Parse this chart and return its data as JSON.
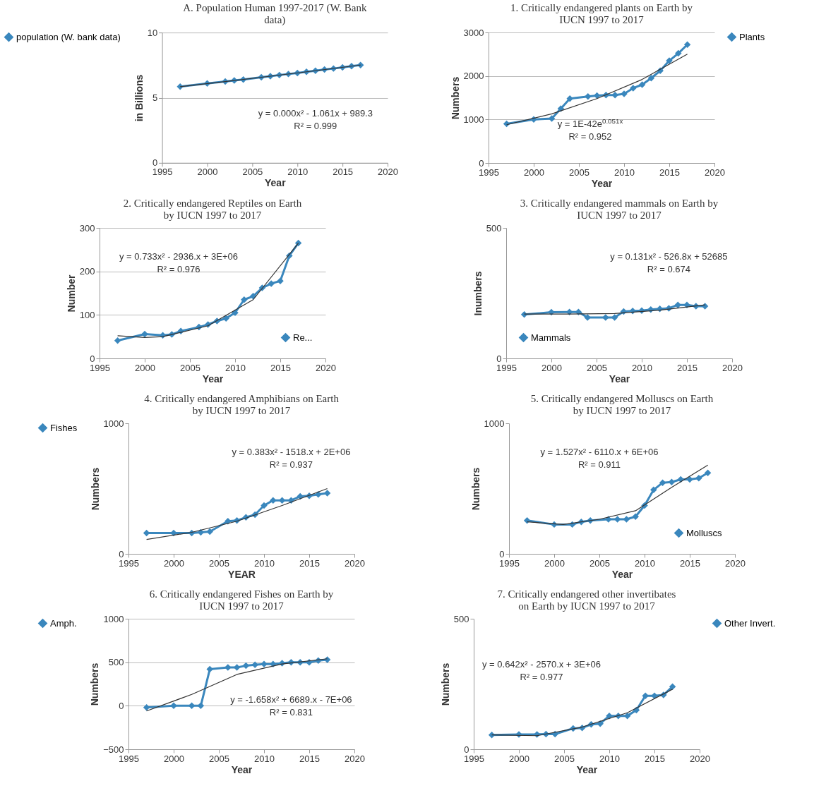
{
  "chart_data": [
    {
      "type": "line",
      "title": "A. Population Human 1997-2017  (W. Bank data)",
      "xlabel": "Year",
      "ylabel": "in Billions",
      "x": [
        1997,
        2000,
        2002,
        2003,
        2004,
        2006,
        2007,
        2008,
        2009,
        2010,
        2011,
        2012,
        2013,
        2014,
        2015,
        2016,
        2017
      ],
      "xlim": [
        1995,
        2020
      ],
      "xticks": [
        1995,
        2000,
        2005,
        2010,
        2015,
        2020
      ],
      "ylim": [
        0,
        10
      ],
      "yticks": [
        0,
        5,
        10
      ],
      "grid": "y",
      "marker": "diamond",
      "legend": "left",
      "annotations": [
        "y = 0.000x² - 1.061x + 989.3",
        "R² = 0.999"
      ],
      "series": [
        {
          "name": "population (W. bank data)",
          "color": "#3a87bd",
          "values": [
            5.85,
            6.1,
            6.25,
            6.33,
            6.4,
            6.57,
            6.65,
            6.74,
            6.82,
            6.9,
            6.99,
            7.07,
            7.16,
            7.24,
            7.33,
            7.42,
            7.51
          ]
        },
        {
          "type": "line",
          "marker": "none",
          "color": "#333333",
          "x": [
            1997,
            2002,
            2007,
            2012,
            2017
          ],
          "values": [
            5.85,
            6.24,
            6.65,
            7.07,
            7.51
          ]
        }
      ]
    },
    {
      "type": "line",
      "title": "1. Critically endangered plants on Earth by IUCN 1997 to 2017",
      "xlabel": "Year",
      "ylabel": "Numbers",
      "x": [
        1997,
        2000,
        2002,
        2003,
        2004,
        2006,
        2007,
        2008,
        2009,
        2010,
        2011,
        2012,
        2013,
        2014,
        2015,
        2016,
        2017
      ],
      "xlim": [
        1995,
        2020
      ],
      "xticks": [
        1995,
        2000,
        2005,
        2010,
        2015,
        2020
      ],
      "ylim": [
        0,
        3000
      ],
      "yticks": [
        0,
        1000,
        2000,
        3000
      ],
      "grid": "y",
      "marker": "diamond",
      "legend": "right",
      "annotations": [
        "y = 1E-42e$^{0.051x}$",
        "R² = 0.952"
      ],
      "series": [
        {
          "name": "Plants",
          "color": "#3a87bd",
          "values": [
            900,
            1000,
            1020,
            1250,
            1480,
            1530,
            1550,
            1560,
            1560,
            1590,
            1720,
            1800,
            1950,
            2120,
            2350,
            2520,
            2720
          ]
        },
        {
          "type": "line",
          "marker": "none",
          "color": "#333333",
          "x": [
            1997,
            2002,
            2007,
            2012,
            2017
          ],
          "values": [
            880,
            1130,
            1480,
            1920,
            2500
          ]
        }
      ]
    },
    {
      "type": "line",
      "title": "2. Critically endangered Reptiles on Earth by IUCN 1997 to 2017",
      "xlabel": "Year",
      "ylabel": "Number",
      "x": [
        1997,
        2000,
        2002,
        2003,
        2004,
        2006,
        2007,
        2008,
        2009,
        2010,
        2011,
        2012,
        2013,
        2014,
        2015,
        2016,
        2017
      ],
      "xlim": [
        1995,
        2020
      ],
      "xticks": [
        1995,
        2000,
        2005,
        2010,
        2015,
        2020
      ],
      "ylim": [
        0,
        300
      ],
      "yticks": [
        0,
        100,
        200,
        300
      ],
      "grid": "y",
      "marker": "diamond",
      "legend": "bottom right",
      "annotations": [
        "y = 0.733x² - 2936.x + 3E+06",
        "R² = 0.976"
      ],
      "series": [
        {
          "name": "Re...",
          "color": "#3a87bd",
          "values": [
            41,
            56,
            53,
            55,
            63,
            72,
            78,
            86,
            92,
            105,
            135,
            143,
            162,
            172,
            178,
            236,
            265
          ]
        },
        {
          "type": "line",
          "marker": "none",
          "color": "#333333",
          "x": [
            1997,
            2000,
            2002,
            2007,
            2012,
            2017
          ],
          "values": [
            52,
            48,
            50,
            75,
            135,
            265
          ]
        }
      ]
    },
    {
      "type": "line",
      "title": "3. Critically endangered mammals on Earth by IUCN 1997 to 2017",
      "xlabel": "Year",
      "ylabel": "Inumbers",
      "x": [
        1997,
        2000,
        2002,
        2003,
        2004,
        2006,
        2007,
        2008,
        2009,
        2010,
        2011,
        2012,
        2013,
        2014,
        2015,
        2016,
        2017
      ],
      "xlim": [
        1995,
        2020
      ],
      "xticks": [
        1995,
        2000,
        2005,
        2010,
        2015,
        2020
      ],
      "ylim": [
        0,
        500
      ],
      "yticks": [
        0,
        500
      ],
      "grid": false,
      "marker": "diamond",
      "legend": "bottom left",
      "annotations": [
        "y = 0.131x² - 526.8x + 52685",
        "R² = 0.674"
      ],
      "series": [
        {
          "name": "Mammals",
          "color": "#3a87bd",
          "values": [
            168,
            177,
            178,
            178,
            157,
            157,
            157,
            180,
            182,
            183,
            187,
            190,
            192,
            205,
            205,
            200,
            200
          ]
        },
        {
          "type": "line",
          "marker": "none",
          "color": "#333333",
          "x": [
            1997,
            2002,
            2007,
            2012,
            2017
          ],
          "values": [
            170,
            170,
            172,
            185,
            205
          ]
        }
      ]
    },
    {
      "type": "line",
      "title": "4. Critically endangered Amphibians on Earth by IUCN 1997 to 2017",
      "xlabel": "YEAR",
      "ylabel": "Numbers",
      "x": [
        1997,
        2000,
        2002,
        2003,
        2004,
        2006,
        2007,
        2008,
        2009,
        2010,
        2011,
        2012,
        2013,
        2014,
        2015,
        2016,
        2017
      ],
      "xlim": [
        1995,
        2020
      ],
      "xticks": [
        1995,
        2000,
        2005,
        2010,
        2015,
        2020
      ],
      "ylim": [
        0,
        1000
      ],
      "yticks": [
        0,
        1000
      ],
      "grid": false,
      "marker": "diamond",
      "legend": "left",
      "annotations": [
        "y = 0.383x² - 1518.x + 2E+06",
        "R² = 0.937"
      ],
      "series": [
        {
          "name": "Fishes",
          "color": "#3a87bd",
          "values": [
            160,
            160,
            160,
            165,
            170,
            250,
            255,
            280,
            300,
            370,
            410,
            410,
            410,
            440,
            445,
            455,
            465
          ]
        },
        {
          "type": "line",
          "marker": "none",
          "color": "#333333",
          "x": [
            1997,
            2002,
            2007,
            2012,
            2017
          ],
          "values": [
            110,
            165,
            250,
            370,
            500
          ]
        }
      ]
    },
    {
      "type": "line",
      "title": "5. Critically endangered Molluscs on Earth by IUCN 1997 to 2017",
      "xlabel": "Year",
      "ylabel": "Numbers",
      "x": [
        1997,
        2000,
        2002,
        2003,
        2004,
        2006,
        2007,
        2008,
        2009,
        2010,
        2011,
        2012,
        2013,
        2014,
        2015,
        2016,
        2017
      ],
      "xlim": [
        1995,
        2020
      ],
      "xticks": [
        1995,
        2000,
        2005,
        2010,
        2015,
        2020
      ],
      "ylim": [
        0,
        1000
      ],
      "yticks": [
        0,
        1000
      ],
      "grid": false,
      "marker": "diamond",
      "legend": "bottom right",
      "annotations": [
        "y = 1.527x² - 6110.x + 6E+06",
        "R² = 0.911"
      ],
      "series": [
        {
          "name": "Molluscs",
          "color": "#3a87bd",
          "values": [
            255,
            225,
            225,
            245,
            255,
            265,
            265,
            265,
            285,
            370,
            490,
            545,
            550,
            570,
            570,
            580,
            620
          ]
        },
        {
          "type": "line",
          "marker": "none",
          "color": "#333333",
          "x": [
            1997,
            2001,
            2005,
            2009,
            2013,
            2017
          ],
          "values": [
            245,
            225,
            265,
            330,
            510,
            680
          ]
        }
      ]
    },
    {
      "type": "line",
      "title": "6. Critically endangered  Fishes on Earth by IUCN 1997 to 2017",
      "xlabel": "Year",
      "ylabel": "Numbers",
      "x": [
        1997,
        2000,
        2002,
        2003,
        2004,
        2006,
        2007,
        2008,
        2009,
        2010,
        2011,
        2012,
        2013,
        2014,
        2015,
        2016,
        2017
      ],
      "xlim": [
        1995,
        2020
      ],
      "xticks": [
        1995,
        2000,
        2005,
        2010,
        2015,
        2020
      ],
      "ylim": [
        -500,
        1000
      ],
      "yticks": [
        -500,
        0,
        500,
        1000
      ],
      "grid": "y",
      "marker": "diamond",
      "legend": "left",
      "annotations": [
        "y = -1.658x² + 6689.x - 7E+06",
        "R² = 0.831"
      ],
      "series": [
        {
          "name": "Amph.",
          "color": "#3a87bd",
          "values": [
            -20,
            0,
            0,
            0,
            420,
            440,
            440,
            460,
            470,
            480,
            480,
            490,
            500,
            500,
            500,
            520,
            530
          ]
        },
        {
          "type": "line",
          "marker": "none",
          "color": "#333333",
          "x": [
            1997,
            2002,
            2007,
            2012,
            2017
          ],
          "values": [
            -60,
            130,
            360,
            480,
            540
          ]
        }
      ]
    },
    {
      "type": "line",
      "title": "7. Critically endangered other invertibates on Earth by IUCN 1997 to 2017",
      "xlabel": "Year",
      "ylabel": "Numbers",
      "x": [
        1997,
        2000,
        2002,
        2003,
        2004,
        2006,
        2007,
        2008,
        2009,
        2010,
        2011,
        2012,
        2013,
        2014,
        2015,
        2016,
        2017
      ],
      "xlim": [
        1995,
        2020
      ],
      "xticks": [
        1995,
        2000,
        2005,
        2010,
        2015,
        2020
      ],
      "ylim": [
        0,
        500
      ],
      "yticks": [
        0,
        500
      ],
      "grid": false,
      "marker": "diamond",
      "legend": "right",
      "annotations": [
        "y = 0.642x² - 2570.x + 3E+06",
        "R² = 0.977"
      ],
      "series": [
        {
          "name": "Other Invert.",
          "color": "#3a87bd",
          "values": [
            55,
            57,
            57,
            58,
            58,
            80,
            82,
            95,
            98,
            128,
            128,
            128,
            150,
            205,
            205,
            208,
            240
          ]
        },
        {
          "type": "line",
          "marker": "none",
          "color": "#333333",
          "x": [
            1997,
            2002,
            2007,
            2012,
            2017
          ],
          "values": [
            55,
            52,
            85,
            140,
            230
          ]
        }
      ]
    }
  ]
}
